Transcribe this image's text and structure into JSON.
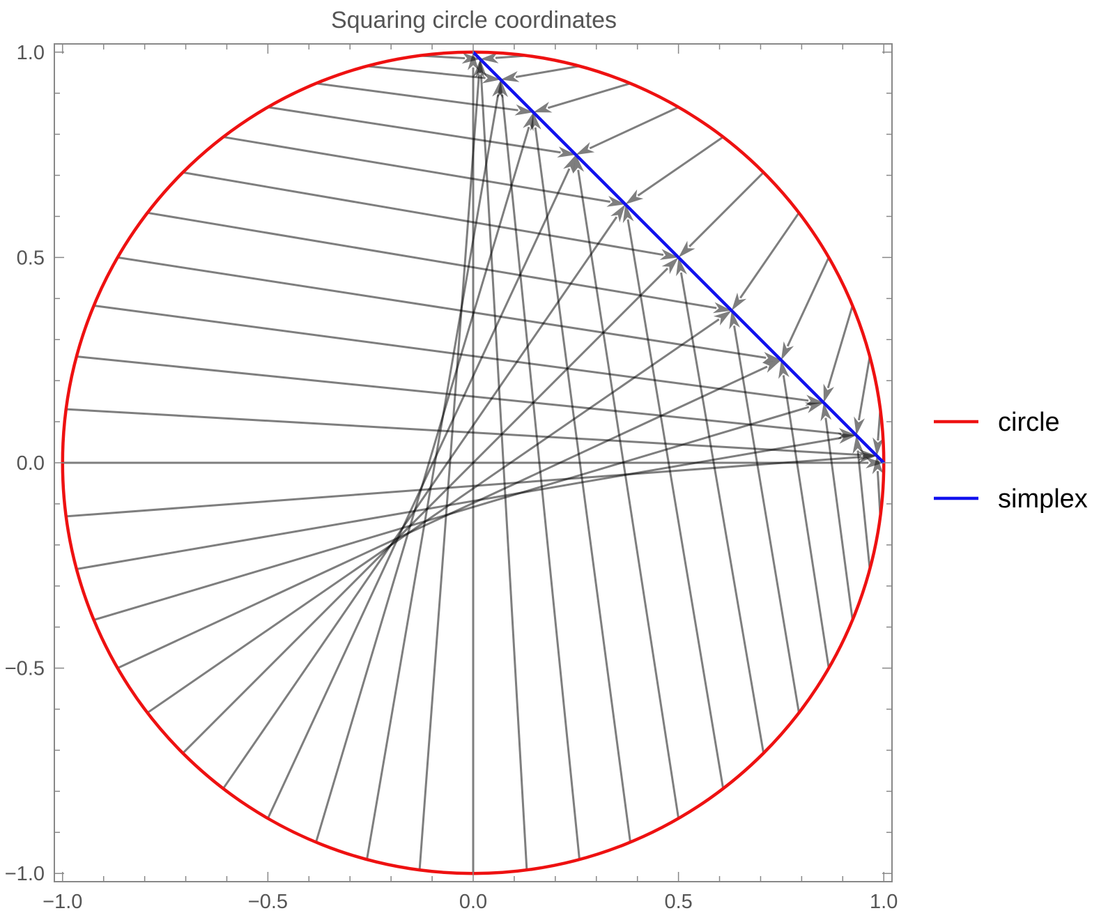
{
  "chart_data": {
    "type": "vector-field-line",
    "title": "Squaring circle coordinates",
    "xlim": [
      -1.02,
      1.02
    ],
    "ylim": [
      -1.02,
      1.02
    ],
    "x_ticks": [
      {
        "value": -1.0,
        "label": "−1.0"
      },
      {
        "value": -0.5,
        "label": "−0.5"
      },
      {
        "value": 0.0,
        "label": "0.0"
      },
      {
        "value": 0.5,
        "label": "0.5"
      },
      {
        "value": 1.0,
        "label": "1.0"
      }
    ],
    "y_ticks": [
      {
        "value": 1.0,
        "label": "1.0"
      },
      {
        "value": 0.5,
        "label": "0.5"
      },
      {
        "value": 0.0,
        "label": "0.0"
      },
      {
        "value": -0.5,
        "label": "−0.5"
      },
      {
        "value": -1.0,
        "label": "−1.0"
      }
    ],
    "minor_tick_step": 0.1,
    "grid": false,
    "legend_position": "right",
    "series": [
      {
        "name": "circle",
        "color": "#ee1111",
        "kind": "unit circle",
        "center": [
          0,
          0
        ],
        "radius": 1
      },
      {
        "name": "simplex",
        "color": "#1111ee",
        "kind": "segment",
        "from": [
          0,
          1
        ],
        "to": [
          1,
          0
        ]
      }
    ],
    "arrows": {
      "color": "#000000",
      "opacity": 0.5,
      "angle_step_degrees": 7.5,
      "mapping": "point (cos t, sin t) on the circle -> (cos² t, sin² t) on the simplex"
    }
  }
}
